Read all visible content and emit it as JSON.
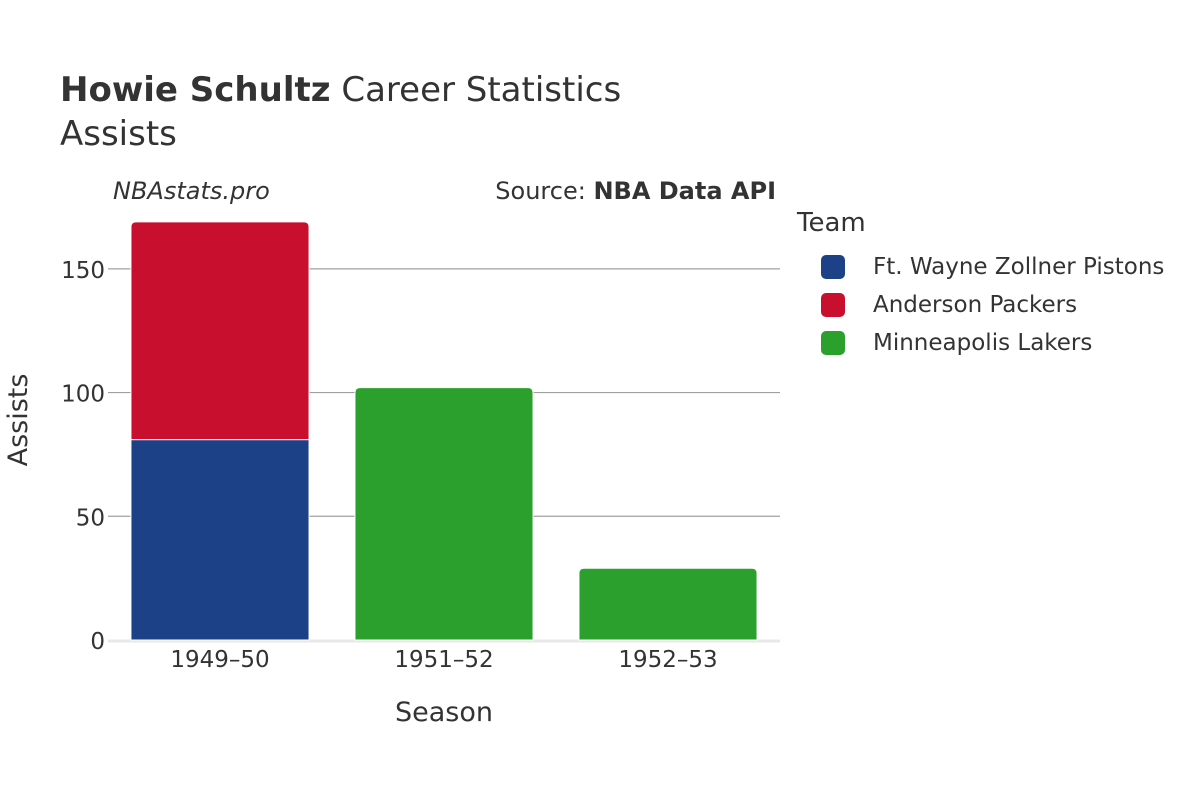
{
  "header": {
    "player": "Howie Schultz",
    "title_rest": " Career Statistics",
    "subtitle": "Assists",
    "watermark": "NBAstats.pro",
    "source_prefix": "Source: ",
    "source_name": "NBA Data API"
  },
  "legend": {
    "title": "Team",
    "items": [
      {
        "label": "Ft. Wayne Zollner Pistons",
        "color": "#1c4187"
      },
      {
        "label": "Anderson Packers",
        "color": "#c8102e"
      },
      {
        "label": "Minneapolis Lakers",
        "color": "#2ca02c"
      }
    ]
  },
  "chart_data": {
    "type": "bar",
    "stacked": true,
    "categories": [
      "1949–50",
      "1951–52",
      "1952–53"
    ],
    "series": [
      {
        "name": "Ft. Wayne Zollner Pistons",
        "color": "#1c4187",
        "values": [
          81,
          0,
          0
        ]
      },
      {
        "name": "Anderson Packers",
        "color": "#c8102e",
        "values": [
          88,
          0,
          0
        ]
      },
      {
        "name": "Minneapolis Lakers",
        "color": "#2ca02c",
        "values": [
          0,
          102,
          29
        ]
      }
    ],
    "xlabel": "Season",
    "ylabel": "Assists",
    "ylim": [
      0,
      175
    ],
    "yticks": [
      0,
      50,
      100,
      150
    ],
    "grid": true,
    "legend_position": "right"
  }
}
